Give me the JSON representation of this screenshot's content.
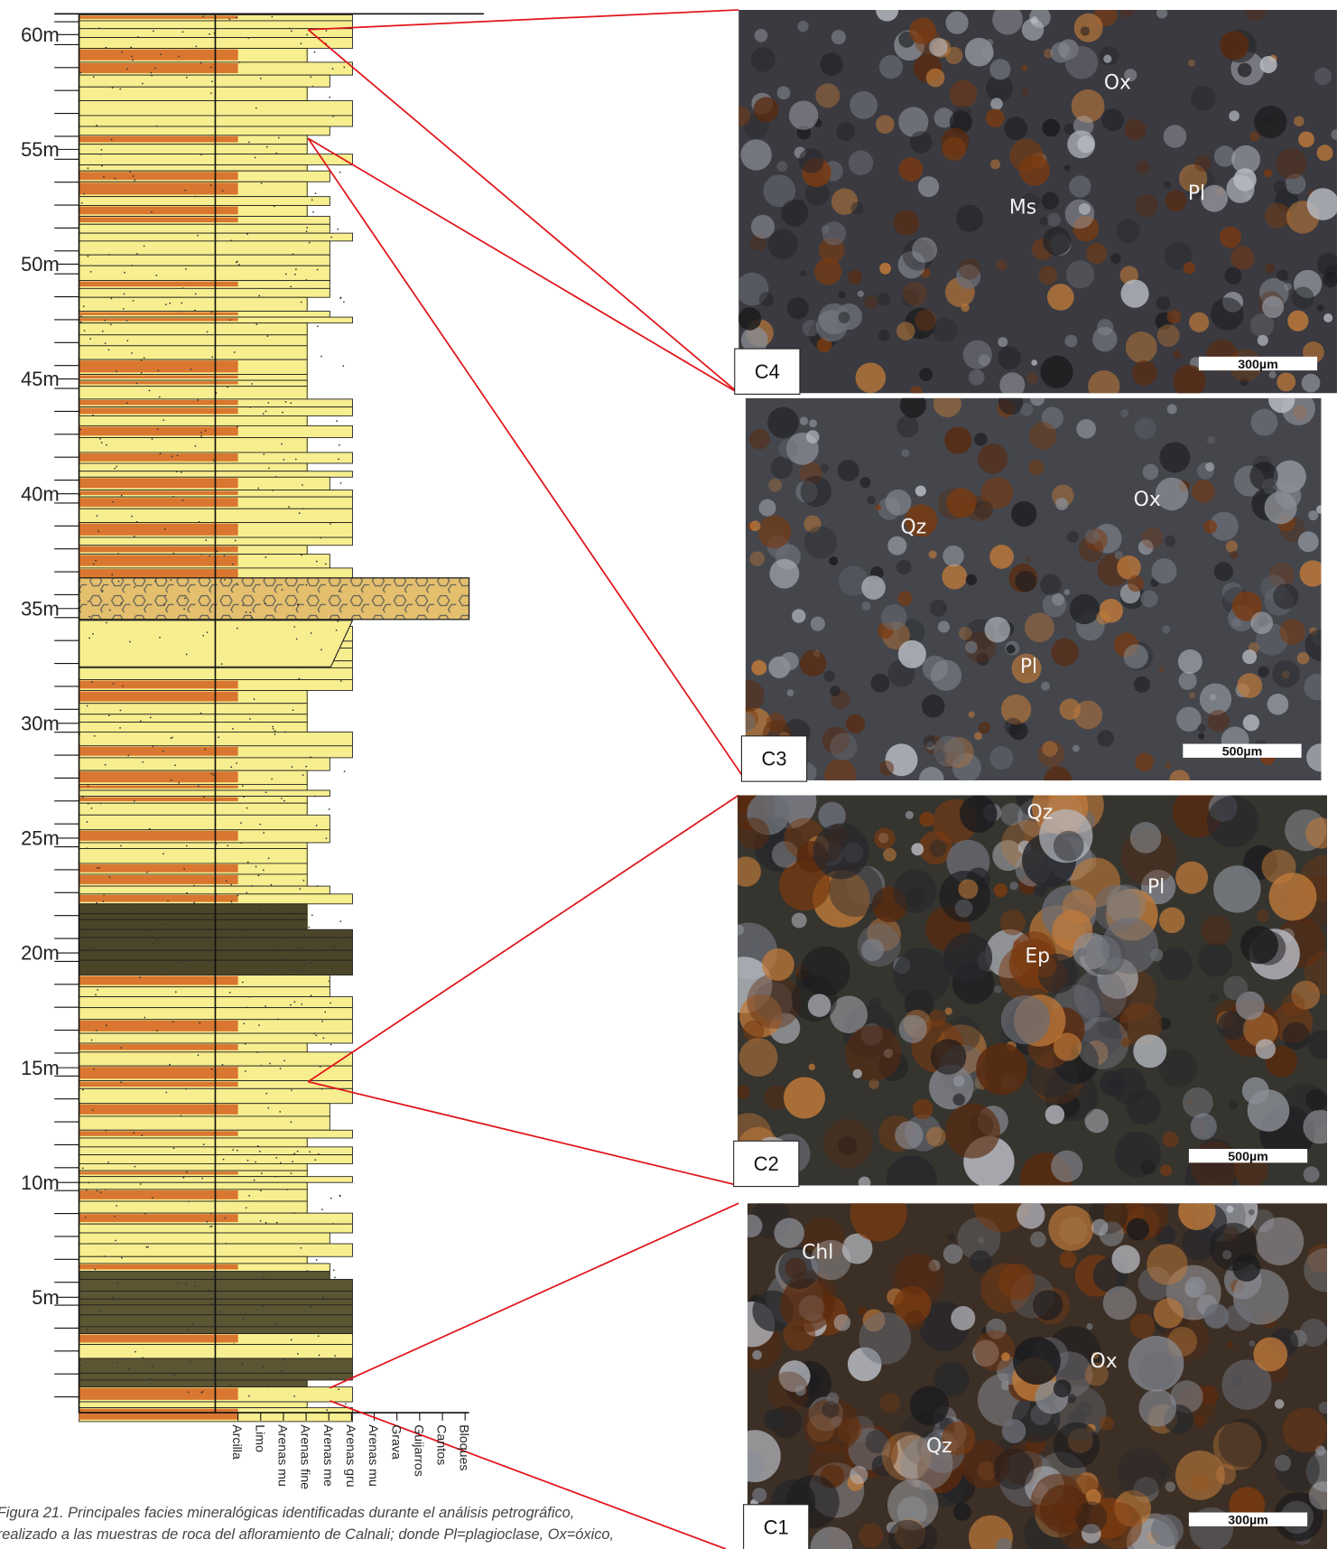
{
  "depth_axis": {
    "ticks": [
      "60m",
      "55m",
      "50m",
      "45m",
      "40m",
      "35m",
      "30m",
      "25m",
      "20m",
      "15m",
      "10m",
      "5m"
    ]
  },
  "grain_size_axis": {
    "labels": [
      "Arcilla",
      "Limo",
      "Arenas mu",
      "Arenas fine",
      "Arenas me",
      "Arenas gru",
      "Arenas mu",
      "Grava",
      "Guijarros",
      "Cantos",
      "Bloques"
    ]
  },
  "panels": [
    {
      "label": "C4",
      "annotations": [
        "Ox",
        "Ms",
        "Pl"
      ],
      "scale_bar": "300µm"
    },
    {
      "label": "C3",
      "annotations": [
        "Qz",
        "Ox",
        "Pl"
      ],
      "scale_bar": "500µm"
    },
    {
      "label": "C2",
      "annotations": [
        "Qz",
        "Pl",
        "Ep"
      ],
      "scale_bar": "500µm"
    },
    {
      "label": "C1",
      "annotations": [
        "Chl",
        "Ox",
        "Qz"
      ],
      "scale_bar": "300µm"
    }
  ],
  "caption": {
    "lines": [
      "Figura 21. Principales facies mineralógicas identificadas durante el análisis petrográfico,",
      "realizado a las muestras de roca del afloramiento de Calnali; donde Pl=plagioclase, Ox=óxico,"
    ]
  }
}
